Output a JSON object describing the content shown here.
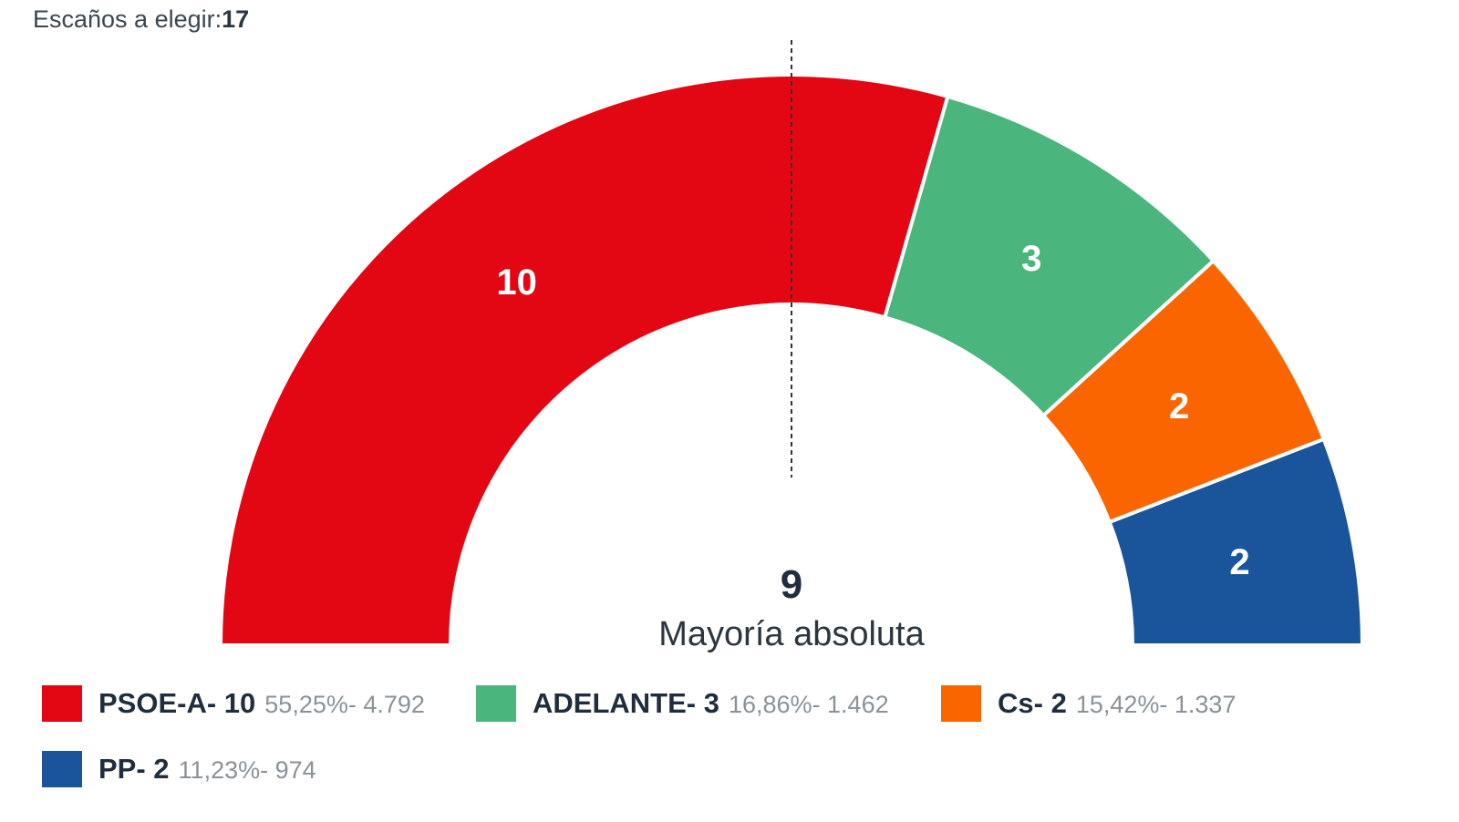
{
  "header": {
    "label": "Escaños a elegir:",
    "total_seats": "17"
  },
  "majority": {
    "seats": "9",
    "label": "Mayoría absoluta"
  },
  "colors": {
    "PSOE-A": "#e30613",
    "ADELANTE": "#4ab57c",
    "Cs": "#fb6500",
    "PP": "#1a559b",
    "text": "#1f2d3d",
    "muted": "#8a9299"
  },
  "legend": [
    {
      "name": "PSOE-A",
      "seats": "- 10",
      "detail": "55,25%- 4.792"
    },
    {
      "name": "ADELANTE",
      "seats": "- 3",
      "detail": "16,86%- 1.462"
    },
    {
      "name": "Cs",
      "seats": "- 2",
      "detail": "15,42%- 1.337"
    },
    {
      "name": "PP",
      "seats": "- 2",
      "detail": "11,23%- 974"
    }
  ],
  "chart_data": {
    "type": "pie",
    "subtype": "hemicycle",
    "total_seats": 17,
    "majority": 9,
    "categories": [
      "PSOE-A",
      "ADELANTE",
      "Cs",
      "PP"
    ],
    "values": [
      10,
      3,
      2,
      2
    ],
    "vote_share_percent": [
      55.25,
      16.86,
      15.42,
      11.23
    ],
    "votes": [
      4792,
      1462,
      1337,
      974
    ],
    "data_labels": [
      "10",
      "3",
      "2",
      "2"
    ]
  }
}
